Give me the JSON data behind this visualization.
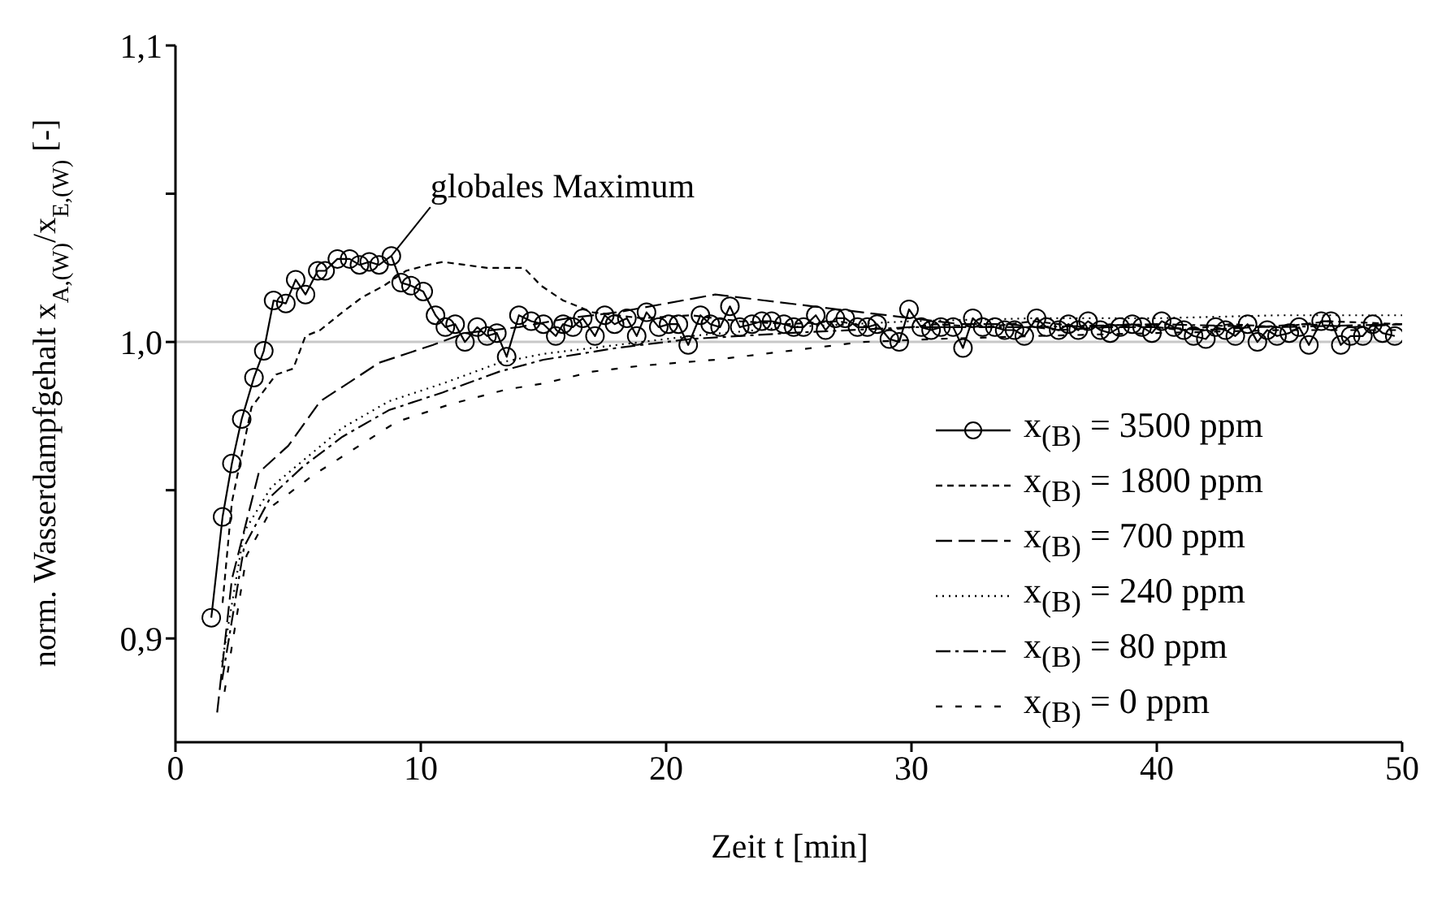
{
  "chart_data": {
    "type": "line",
    "xlabel": "Zeit t [min]",
    "ylabel": "norm. Wasserdampfgehalt x$_{A,(W)}$/x$_{E,(W)}$ [-]",
    "xlim": [
      0,
      50
    ],
    "xticks": [
      0,
      10,
      20,
      30,
      40,
      50
    ],
    "ylim": [
      0.865,
      1.1
    ],
    "yticks": [
      {
        "value": 0.9,
        "label": "0,9"
      },
      {
        "value": 0.95,
        "label": null
      },
      {
        "value": 1.0,
        "label": "1,0"
      },
      {
        "value": 1.05,
        "label": null
      },
      {
        "value": 1.1,
        "label": "1,1"
      }
    ],
    "grid": false,
    "legend": "bottom right",
    "ref_lines": [
      {
        "axis": "y",
        "value": 1.0,
        "color": "#c8c8c8"
      }
    ],
    "annotations": [
      {
        "text": "globales Maximum",
        "x": 8.8,
        "y": 1.029
      }
    ],
    "series": [
      {
        "name": "x$_{(B)}$ = 3500 ppm",
        "color": "#000000",
        "marker": "circle",
        "line_style": "solid",
        "x": [
          1.46,
          1.92,
          2.3,
          2.7,
          3.2,
          3.6,
          4.0,
          4.5,
          4.9,
          5.3,
          5.8,
          6.1,
          6.6,
          7.1,
          7.5,
          7.9,
          8.3,
          8.8,
          9.2,
          9.6,
          10.1,
          10.6,
          11.0,
          11.4,
          11.8,
          12.3,
          12.7,
          13.1,
          13.5,
          14.0,
          14.5,
          15.0,
          15.5,
          15.8,
          16.2,
          16.6,
          17.1,
          17.5,
          17.9,
          18.4,
          18.8,
          19.2,
          19.7,
          20.1,
          20.5,
          20.9,
          21.4,
          21.8,
          22.2,
          22.6,
          23.0,
          23.5,
          23.9,
          24.3,
          24.8,
          25.2,
          25.6,
          26.1,
          26.5,
          26.9,
          27.3,
          27.8,
          28.2,
          28.6,
          29.1,
          29.5,
          29.9,
          30.4,
          30.8,
          31.2,
          31.7,
          32.1,
          32.5,
          32.9,
          33.4,
          33.8,
          34.2,
          34.6,
          35.1,
          35.5,
          36.0,
          36.4,
          36.8,
          37.2,
          37.7,
          38.1,
          38.5,
          39.0,
          39.4,
          39.8,
          40.2,
          40.7,
          41.1,
          41.5,
          42.0,
          42.4,
          42.8,
          43.2,
          43.7,
          44.1,
          44.5,
          44.9,
          45.4,
          45.8,
          46.2,
          46.7,
          47.1,
          47.5,
          47.9,
          48.4,
          48.8,
          49.2,
          49.7
        ],
        "values": [
          0.907,
          0.941,
          0.959,
          0.974,
          0.988,
          0.997,
          1.014,
          1.013,
          1.021,
          1.016,
          1.024,
          1.024,
          1.028,
          1.028,
          1.026,
          1.027,
          1.026,
          1.029,
          1.02,
          1.019,
          1.017,
          1.009,
          1.005,
          1.006,
          1.0,
          1.005,
          1.002,
          1.003,
          0.995,
          1.009,
          1.007,
          1.006,
          1.002,
          1.006,
          1.005,
          1.008,
          1.002,
          1.009,
          1.006,
          1.008,
          1.002,
          1.01,
          1.005,
          1.006,
          1.006,
          0.999,
          1.009,
          1.006,
          1.005,
          1.012,
          1.005,
          1.006,
          1.007,
          1.007,
          1.006,
          1.005,
          1.005,
          1.009,
          1.004,
          1.008,
          1.008,
          1.005,
          1.005,
          1.006,
          1.001,
          1.0,
          1.011,
          1.005,
          1.004,
          1.005,
          1.005,
          0.998,
          1.008,
          1.005,
          1.005,
          1.004,
          1.004,
          1.002,
          1.008,
          1.005,
          1.004,
          1.006,
          1.004,
          1.007,
          1.004,
          1.003,
          1.005,
          1.006,
          1.005,
          1.003,
          1.007,
          1.005,
          1.004,
          1.002,
          1.001,
          1.005,
          1.004,
          1.002,
          1.006,
          1.0,
          1.004,
          1.002,
          1.003,
          1.005,
          0.999,
          1.007,
          1.007,
          0.999,
          1.002,
          1.002,
          1.006,
          1.003,
          1.002
        ]
      },
      {
        "name": "x$_{(B)}$ = 1800 ppm",
        "color": "#000000",
        "marker": "none",
        "line_style": "dashed",
        "x": [
          1.92,
          2.3,
          3.1,
          4.1,
          4.8,
          5.3,
          5.9,
          6.8,
          7.6,
          8.5,
          9.4,
          10.3,
          10.9,
          11.8,
          12.7,
          13.6,
          14.2,
          14.9,
          15.8,
          17,
          19,
          21,
          23,
          25,
          27,
          29,
          31,
          33,
          35,
          37,
          39,
          41,
          43,
          45,
          47,
          50
        ],
        "values": [
          0.912,
          0.946,
          0.978,
          0.989,
          0.991,
          1.002,
          1.004,
          1.01,
          1.015,
          1.019,
          1.024,
          1.026,
          1.027,
          1.026,
          1.025,
          1.025,
          1.025,
          1.019,
          1.014,
          1.01,
          1.008,
          1.009,
          1.007,
          1.006,
          1.007,
          1.004,
          1.006,
          1.005,
          1.007,
          1.005,
          1.006,
          1.004,
          1.006,
          1.005,
          1.007,
          1.006
        ]
      },
      {
        "name": "x$_{(B)}$ = 700 ppm",
        "color": "#000000",
        "marker": "none",
        "line_style": "dashed",
        "x": [
          1.7,
          2.3,
          3.4,
          4.6,
          5.9,
          7.2,
          8.3,
          9.4,
          10.5,
          11.8,
          14,
          16,
          18,
          20,
          22,
          24,
          26,
          28,
          30,
          32,
          34,
          36,
          38,
          40,
          42,
          44,
          46,
          48,
          50
        ],
        "values": [
          0.875,
          0.92,
          0.956,
          0.965,
          0.98,
          0.987,
          0.993,
          0.996,
          0.999,
          1.003,
          1.005,
          1.008,
          1.01,
          1.013,
          1.016,
          1.014,
          1.012,
          1.01,
          1.008,
          1.006,
          1.006,
          1.004,
          1.005,
          1.005,
          1.004,
          1.005,
          1.006,
          1.005,
          1.006
        ]
      },
      {
        "name": "x$_{(B)}$ = 240 ppm",
        "color": "#000000",
        "marker": "none",
        "line_style": "dotted",
        "x": [
          1.9,
          2.8,
          3.9,
          5.2,
          6.8,
          8.7,
          10.9,
          13.2,
          15,
          18,
          21,
          25,
          30,
          35,
          40,
          45,
          50
        ],
        "values": [
          0.892,
          0.936,
          0.951,
          0.96,
          0.971,
          0.98,
          0.986,
          0.993,
          0.996,
          0.999,
          1.002,
          1.005,
          1.007,
          1.008,
          1.008,
          1.009,
          1.009
        ]
      },
      {
        "name": "x$_{(B)}$ = 80 ppm",
        "color": "#000000",
        "marker": "none",
        "line_style": "dashed",
        "x": [
          1.9,
          2.8,
          3.9,
          5.2,
          6.8,
          8.7,
          10.9,
          13.2,
          15,
          18,
          21,
          25,
          30,
          35,
          40,
          45,
          50
        ],
        "values": [
          0.886,
          0.931,
          0.948,
          0.958,
          0.968,
          0.977,
          0.983,
          0.99,
          0.994,
          0.998,
          1.001,
          1.003,
          1.005,
          1.005,
          1.006,
          1.005,
          1.006
        ]
      },
      {
        "name": "x$_{(B)}$ = 0 ppm",
        "color": "#000000",
        "marker": "none",
        "line_style": "dashed",
        "x": [
          2.0,
          2.9,
          4.0,
          5.6,
          7.3,
          9.0,
          11.2,
          13.5,
          15,
          17,
          19,
          22,
          25,
          28,
          31,
          35,
          40,
          45,
          50
        ],
        "values": [
          0.882,
          0.928,
          0.945,
          0.955,
          0.964,
          0.973,
          0.979,
          0.984,
          0.986,
          0.99,
          0.992,
          0.994,
          0.997,
          1.0,
          1.001,
          1.002,
          1.003,
          1.004,
          1.004
        ]
      }
    ]
  }
}
